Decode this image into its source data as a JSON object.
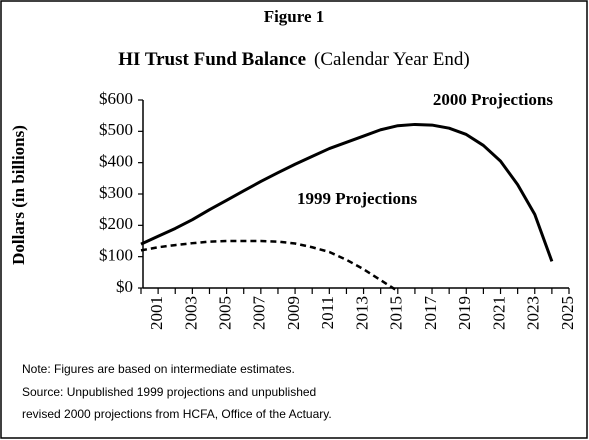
{
  "chart_data": {
    "type": "line",
    "figure_label": "Figure 1",
    "title": "HI Trust Fund Balance",
    "subtitle": "(Calendar Year End)",
    "y_label": "Dollars (in billions)",
    "x": [
      2000,
      2001,
      2002,
      2003,
      2004,
      2005,
      2006,
      2007,
      2008,
      2009,
      2010,
      2011,
      2012,
      2013,
      2014,
      2015,
      2016,
      2017,
      2018,
      2019,
      2020,
      2021,
      2022,
      2023,
      2024
    ],
    "series": [
      {
        "name": "2000 Projections",
        "color": "#000000",
        "dash": false,
        "values": [
          140,
          165,
          190,
          218,
          250,
          280,
          310,
          340,
          368,
          395,
          420,
          445,
          465,
          485,
          505,
          518,
          522,
          520,
          510,
          490,
          455,
          405,
          330,
          235,
          85
        ]
      },
      {
        "name": "1999 Projections",
        "color": "#000000",
        "dash": true,
        "values": [
          120,
          130,
          137,
          143,
          148,
          150,
          150,
          150,
          148,
          142,
          130,
          115,
          90,
          60,
          25,
          -10,
          null,
          null,
          null,
          null,
          null,
          null,
          null,
          null,
          null
        ]
      }
    ],
    "xlim": [
      2000,
      2025
    ],
    "xticks": [
      2001,
      2003,
      2005,
      2007,
      2009,
      2011,
      2013,
      2015,
      2017,
      2019,
      2021,
      2023,
      2025
    ],
    "minor_xticks": [
      2000,
      2002,
      2004,
      2006,
      2008,
      2010,
      2012,
      2014,
      2016,
      2018,
      2020,
      2022,
      2024
    ],
    "ylim": [
      0,
      600
    ],
    "yticks": [
      {
        "value": 0,
        "label": "$0"
      },
      {
        "value": 100,
        "label": "$100"
      },
      {
        "value": 200,
        "label": "$200"
      },
      {
        "value": 300,
        "label": "$300"
      },
      {
        "value": 400,
        "label": "$400"
      },
      {
        "value": 500,
        "label": "$500"
      },
      {
        "value": 600,
        "label": "$600"
      }
    ],
    "grid": false,
    "notes": [
      "Note: Figures are based on intermediate estimates.",
      "Source: Unpublished 1999 projections and unpublished",
      "revised 2000 projections  from HCFA, Office of the Actuary."
    ]
  }
}
